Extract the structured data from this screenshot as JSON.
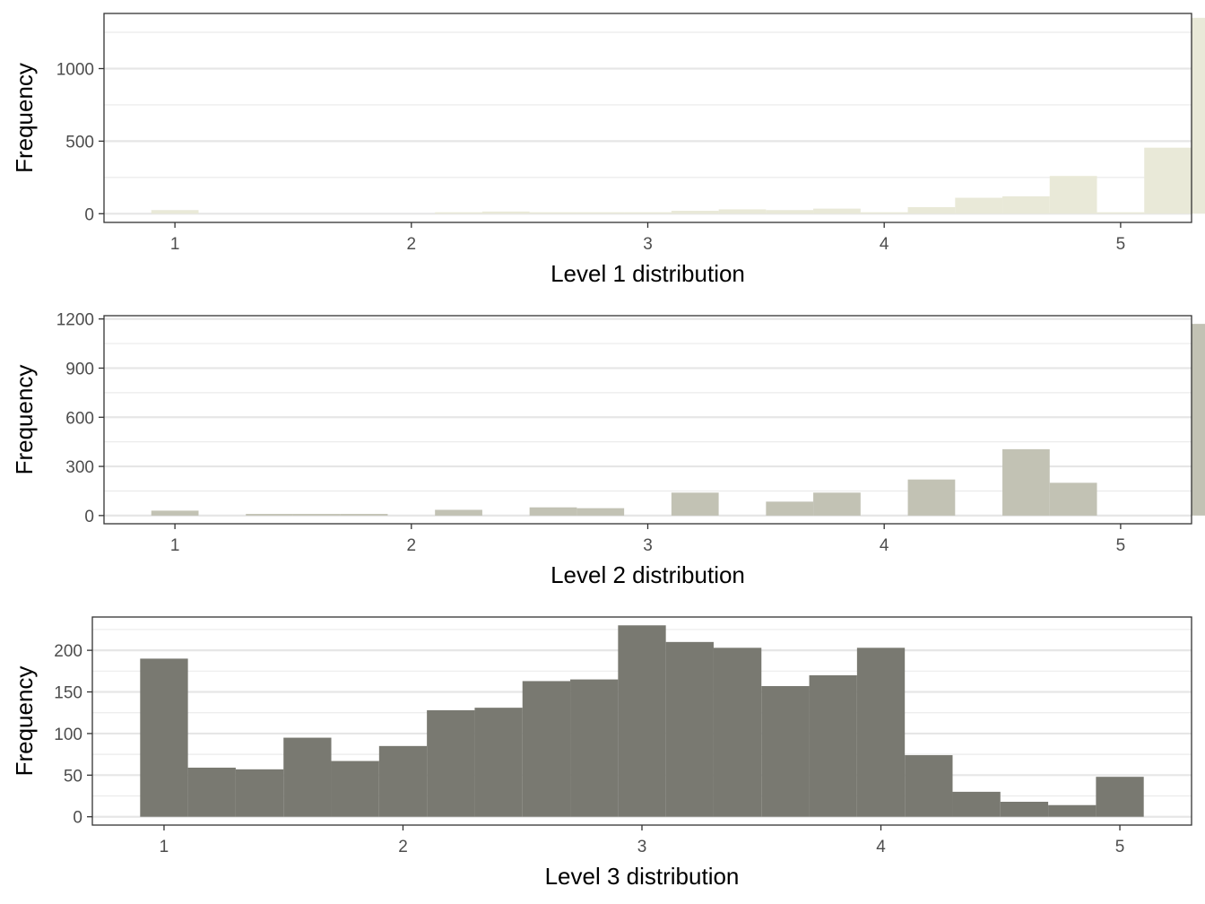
{
  "chart_data": [
    {
      "type": "bar",
      "title": "",
      "xlabel": "Level 1 distribution",
      "ylabel": "Frequency",
      "xlim": [
        0.7,
        5.3
      ],
      "ylim": [
        -60,
        1380
      ],
      "x_ticks": [
        1,
        2,
        3,
        4,
        5
      ],
      "y_ticks": [
        0,
        500,
        1000
      ],
      "bin_start": 0.9,
      "bin_width": 0.2,
      "fill": "#e9e9d8",
      "grid": true,
      "values": [
        25,
        0,
        0,
        0,
        0,
        0,
        10,
        15,
        10,
        10,
        10,
        20,
        30,
        25,
        35,
        10,
        45,
        110,
        120,
        260,
        10,
        455,
        1350
      ]
    },
    {
      "type": "bar",
      "title": "",
      "xlabel": "Level 2 distribution",
      "ylabel": "Frequency",
      "xlim": [
        0.7,
        5.3
      ],
      "ylim": [
        -50,
        1220
      ],
      "x_ticks": [
        1,
        2,
        3,
        4,
        5
      ],
      "y_ticks": [
        0,
        300,
        600,
        900,
        1200
      ],
      "bin_start": 0.9,
      "bin_width": 0.2,
      "fill": "#c2c2b4",
      "grid": true,
      "values": [
        30,
        0,
        10,
        10,
        10,
        0,
        35,
        0,
        50,
        45,
        0,
        140,
        0,
        85,
        140,
        0,
        220,
        0,
        405,
        200,
        0,
        0,
        1170
      ]
    },
    {
      "type": "bar",
      "title": "",
      "xlabel": "Level 3 distribution",
      "ylabel": "Frequency",
      "xlim": [
        0.7,
        5.3
      ],
      "ylim": [
        -10,
        240
      ],
      "x_ticks": [
        1,
        2,
        3,
        4,
        5
      ],
      "y_ticks": [
        0,
        50,
        100,
        150,
        200
      ],
      "bin_start": 0.9,
      "bin_width": 0.2,
      "fill": "#797971",
      "grid": true,
      "values": [
        190,
        59,
        57,
        95,
        67,
        85,
        128,
        131,
        163,
        165,
        230,
        210,
        203,
        157,
        170,
        203,
        74,
        30,
        18,
        14,
        48
      ]
    }
  ]
}
